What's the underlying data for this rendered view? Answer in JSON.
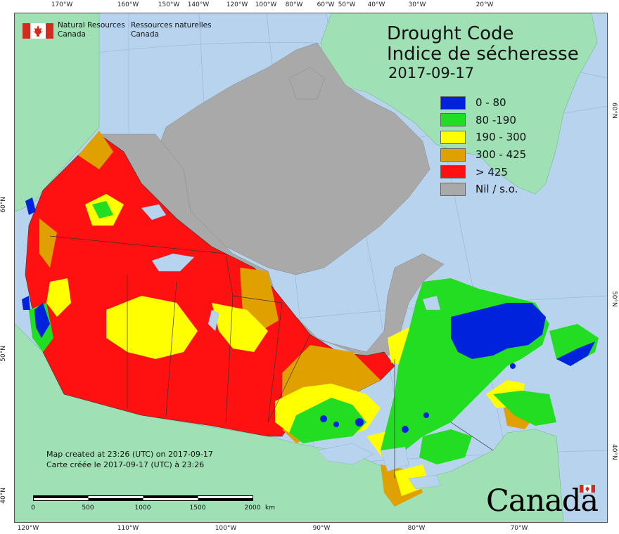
{
  "title_en": "Drought Code",
  "title_fr": "Indice de sécheresse",
  "date": "2017-09-17",
  "legend": [
    {
      "label": "0 - 80",
      "color": "#0022dd"
    },
    {
      "label": "80 -190",
      "color": "#22dd22"
    },
    {
      "label": "190 - 300",
      "color": "#ffff00"
    },
    {
      "label": "300 - 425",
      "color": "#e0a000"
    },
    {
      "label": "> 425",
      "color": "#ff1111"
    },
    {
      "label": "Nil / s.o.",
      "color": "#a9a9a9"
    }
  ],
  "agency": {
    "en_line1": "Natural Resources",
    "en_line2": "Canada",
    "fr_line1": "Ressources naturelles",
    "fr_line2": "Canada"
  },
  "created": {
    "en": "Map created at 23:26 (UTC) on 2017-09-17",
    "fr": "Carte créée le 2017-09-17 (UTC) à 23:26"
  },
  "scale": {
    "labels": [
      "0",
      "500",
      "1000",
      "1500",
      "2000"
    ],
    "unit": "km"
  },
  "wordmark": "Canada",
  "graticule": {
    "top": [
      "170°W",
      "160°W",
      "150°W",
      "140°W",
      "120°W",
      "100°W",
      "80°W",
      "60°W",
      "50°W",
      "40°W",
      "30°W",
      "20°W"
    ],
    "bottom": [
      "120°W",
      "110°W",
      "100°W",
      "90°W",
      "80°W",
      "70°W"
    ],
    "left": [
      "60°N",
      "50°N",
      "40°N"
    ],
    "right": [
      "60°N",
      "50°N",
      "40°N"
    ]
  },
  "colors": {
    "ocean": "#b7d3ee",
    "foreign_land": "#9fe0b4",
    "no_data": "#a9a9a9",
    "border": "#333333"
  }
}
